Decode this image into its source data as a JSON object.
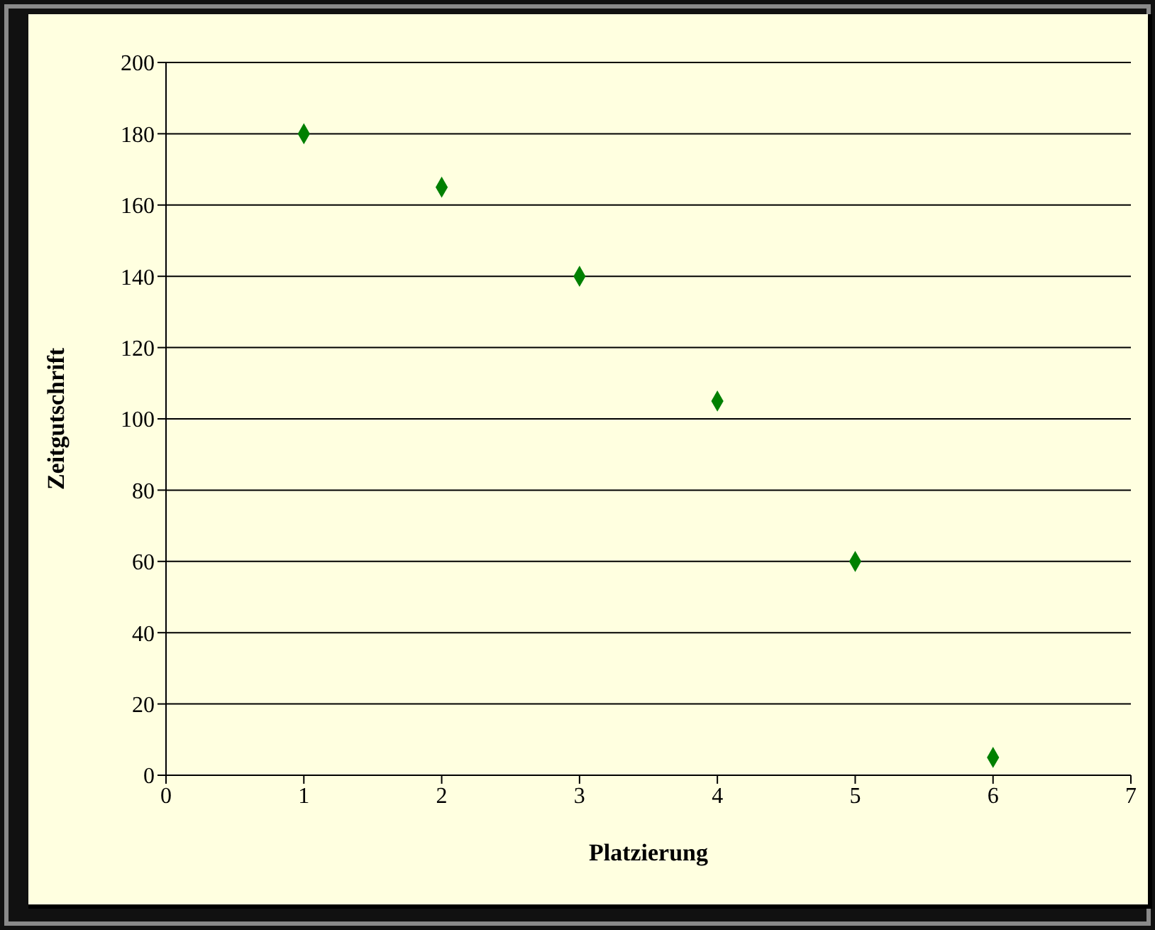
{
  "chart_data": {
    "type": "scatter",
    "xlabel": "Platzierung",
    "ylabel": "Zeitgutschrift",
    "x": [
      1,
      2,
      3,
      4,
      5,
      6
    ],
    "values": [
      180,
      165,
      140,
      105,
      60,
      5
    ],
    "color": "#008000",
    "xlim": [
      0,
      7
    ],
    "xticks": [
      0,
      1,
      2,
      3,
      4,
      5,
      6,
      7
    ],
    "ylim": [
      0,
      200
    ],
    "yticks": [
      0,
      20,
      40,
      60,
      80,
      100,
      120,
      140,
      160,
      180,
      200
    ],
    "grid": "y",
    "marker": "diamond"
  }
}
